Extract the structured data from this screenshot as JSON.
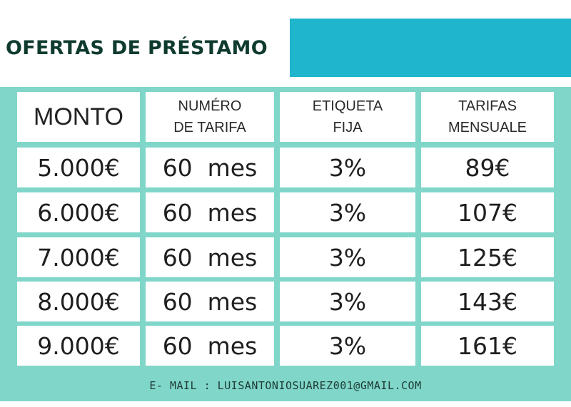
{
  "title": "OFERTAS DE PRÉSTAMO",
  "colors": {
    "accent": "#1fb5cc",
    "background": "#7fd6c9",
    "title": "#0f3b2f"
  },
  "table": {
    "headers": [
      {
        "line1": "MONTO",
        "line2": ""
      },
      {
        "line1": "NUMÉRO",
        "line2": "DE TARIFA"
      },
      {
        "line1": "ETIQUETA",
        "line2": "FIJA"
      },
      {
        "line1": "TARIFAS",
        "line2": "MENSUALE"
      }
    ],
    "rows": [
      [
        "5.000€",
        "60  mes",
        "3%",
        "89€"
      ],
      [
        "6.000€",
        "60  mes",
        "3%",
        "107€"
      ],
      [
        "7.000€",
        "60  mes",
        "3%",
        "125€"
      ],
      [
        "8.000€",
        "60  mes",
        "3%",
        "143€"
      ],
      [
        "9.000€",
        "60  mes",
        "3%",
        "161€"
      ]
    ]
  },
  "footer": "E- MAIL : LUISANTONIOSUAREZ001@GMAIL.COM"
}
